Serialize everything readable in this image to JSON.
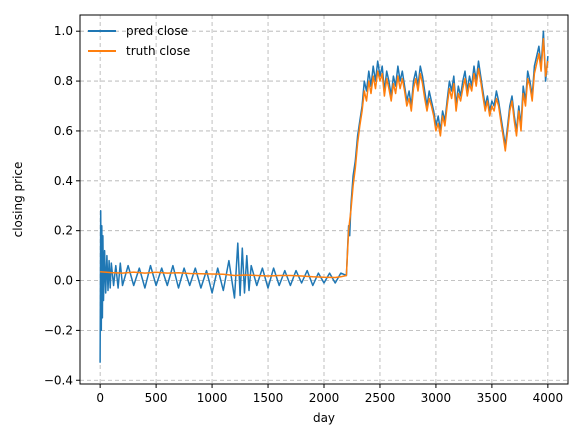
{
  "chart_data": {
    "type": "line",
    "xlabel": "day",
    "ylabel": "closing price",
    "xlim": [
      -180,
      4180
    ],
    "ylim": [
      -0.415,
      1.065
    ],
    "xticks": [
      0,
      500,
      1000,
      1500,
      2000,
      2500,
      3000,
      3500,
      4000
    ],
    "xtick_labels": [
      "0",
      "500",
      "1000",
      "1500",
      "2000",
      "2500",
      "3000",
      "3500",
      "4000"
    ],
    "yticks": [
      -0.4,
      -0.2,
      0.0,
      0.2,
      0.4,
      0.6,
      0.8,
      1.0
    ],
    "ytick_labels": [
      "−0.4",
      "−0.2",
      "0.0",
      "0.2",
      "0.4",
      "0.6",
      "0.8",
      "1.0"
    ],
    "grid": true,
    "legend_position": "top-left",
    "series": [
      {
        "name": "pred close",
        "color": "#1f77b4",
        "x": [
          0,
          5,
          10,
          15,
          20,
          25,
          30,
          40,
          50,
          60,
          70,
          80,
          90,
          100,
          120,
          140,
          160,
          180,
          200,
          250,
          300,
          350,
          400,
          450,
          500,
          550,
          600,
          650,
          700,
          750,
          800,
          850,
          900,
          950,
          1000,
          1050,
          1100,
          1150,
          1200,
          1230,
          1250,
          1270,
          1290,
          1310,
          1330,
          1350,
          1400,
          1450,
          1500,
          1550,
          1600,
          1650,
          1700,
          1750,
          1800,
          1850,
          1900,
          1950,
          2000,
          2050,
          2100,
          2150,
          2200,
          2220,
          2230,
          2240,
          2250,
          2260,
          2280,
          2300,
          2320,
          2340,
          2360,
          2380,
          2400,
          2420,
          2440,
          2460,
          2480,
          2500,
          2520,
          2540,
          2560,
          2580,
          2600,
          2620,
          2640,
          2660,
          2680,
          2700,
          2720,
          2740,
          2760,
          2780,
          2800,
          2820,
          2840,
          2860,
          2880,
          2900,
          2920,
          2940,
          2960,
          2980,
          3000,
          3020,
          3040,
          3060,
          3080,
          3100,
          3120,
          3140,
          3160,
          3180,
          3200,
          3220,
          3240,
          3260,
          3280,
          3300,
          3320,
          3340,
          3360,
          3380,
          3400,
          3420,
          3440,
          3460,
          3480,
          3500,
          3520,
          3540,
          3560,
          3580,
          3600,
          3620,
          3640,
          3660,
          3680,
          3700,
          3720,
          3740,
          3760,
          3780,
          3800,
          3820,
          3840,
          3860,
          3880,
          3900,
          3920,
          3940,
          3960,
          3980,
          4000
        ],
        "y": [
          -0.33,
          0.28,
          -0.2,
          0.22,
          -0.15,
          0.18,
          -0.08,
          0.12,
          -0.05,
          0.1,
          -0.04,
          0.08,
          -0.03,
          0.07,
          -0.02,
          0.06,
          -0.03,
          0.07,
          -0.02,
          0.06,
          -0.02,
          0.05,
          -0.03,
          0.06,
          -0.02,
          0.05,
          -0.02,
          0.06,
          -0.03,
          0.05,
          -0.02,
          0.05,
          -0.03,
          0.04,
          -0.05,
          0.05,
          -0.04,
          0.08,
          -0.07,
          0.15,
          -0.06,
          0.13,
          -0.05,
          0.1,
          -0.04,
          0.06,
          -0.02,
          0.05,
          -0.03,
          0.05,
          -0.02,
          0.04,
          -0.02,
          0.04,
          -0.01,
          0.04,
          -0.02,
          0.03,
          -0.01,
          0.03,
          -0.01,
          0.03,
          0.02,
          0.22,
          0.18,
          0.3,
          0.36,
          0.42,
          0.48,
          0.58,
          0.64,
          0.7,
          0.8,
          0.76,
          0.84,
          0.78,
          0.86,
          0.8,
          0.88,
          0.82,
          0.86,
          0.76,
          0.84,
          0.8,
          0.74,
          0.82,
          0.78,
          0.86,
          0.8,
          0.84,
          0.78,
          0.72,
          0.76,
          0.7,
          0.8,
          0.84,
          0.78,
          0.86,
          0.82,
          0.76,
          0.7,
          0.76,
          0.72,
          0.68,
          0.62,
          0.66,
          0.6,
          0.68,
          0.64,
          0.72,
          0.8,
          0.76,
          0.82,
          0.7,
          0.78,
          0.74,
          0.8,
          0.84,
          0.76,
          0.82,
          0.78,
          0.86,
          0.8,
          0.88,
          0.82,
          0.76,
          0.7,
          0.74,
          0.68,
          0.72,
          0.7,
          0.76,
          0.72,
          0.66,
          0.6,
          0.54,
          0.62,
          0.7,
          0.74,
          0.66,
          0.6,
          0.7,
          0.62,
          0.78,
          0.72,
          0.84,
          0.8,
          0.74,
          0.86,
          0.9,
          0.94,
          0.86,
          1.0,
          0.8,
          0.9
        ]
      },
      {
        "name": "truth close",
        "color": "#ff7f0e",
        "x": [
          0,
          100,
          200,
          300,
          400,
          500,
          600,
          700,
          800,
          900,
          1000,
          1100,
          1200,
          1300,
          1400,
          1500,
          1600,
          1700,
          1800,
          1900,
          2000,
          2100,
          2150,
          2200,
          2220,
          2230,
          2240,
          2250,
          2260,
          2280,
          2300,
          2320,
          2340,
          2360,
          2380,
          2400,
          2420,
          2440,
          2460,
          2480,
          2500,
          2520,
          2540,
          2560,
          2580,
          2600,
          2620,
          2640,
          2660,
          2680,
          2700,
          2720,
          2740,
          2760,
          2780,
          2800,
          2820,
          2840,
          2860,
          2880,
          2900,
          2920,
          2940,
          2960,
          2980,
          3000,
          3020,
          3040,
          3060,
          3080,
          3100,
          3120,
          3140,
          3160,
          3180,
          3200,
          3220,
          3240,
          3260,
          3280,
          3300,
          3320,
          3340,
          3360,
          3380,
          3400,
          3420,
          3440,
          3460,
          3480,
          3500,
          3520,
          3540,
          3560,
          3580,
          3600,
          3620,
          3640,
          3660,
          3680,
          3700,
          3720,
          3740,
          3760,
          3780,
          3800,
          3820,
          3840,
          3860,
          3880,
          3900,
          3920,
          3940,
          3960,
          3980,
          4000
        ],
        "y": [
          0.035,
          0.032,
          0.03,
          0.034,
          0.03,
          0.033,
          0.03,
          0.031,
          0.028,
          0.027,
          0.026,
          0.025,
          0.02,
          0.022,
          0.02,
          0.018,
          0.02,
          0.02,
          0.018,
          0.015,
          0.013,
          0.012,
          0.015,
          0.02,
          0.2,
          0.24,
          0.28,
          0.33,
          0.38,
          0.45,
          0.55,
          0.62,
          0.68,
          0.76,
          0.72,
          0.8,
          0.75,
          0.82,
          0.77,
          0.84,
          0.8,
          0.83,
          0.74,
          0.81,
          0.77,
          0.72,
          0.79,
          0.75,
          0.82,
          0.77,
          0.81,
          0.76,
          0.7,
          0.73,
          0.68,
          0.77,
          0.81,
          0.76,
          0.83,
          0.79,
          0.73,
          0.68,
          0.73,
          0.7,
          0.66,
          0.6,
          0.63,
          0.58,
          0.66,
          0.62,
          0.7,
          0.77,
          0.73,
          0.79,
          0.68,
          0.75,
          0.72,
          0.77,
          0.81,
          0.74,
          0.79,
          0.76,
          0.83,
          0.78,
          0.85,
          0.8,
          0.74,
          0.68,
          0.72,
          0.66,
          0.7,
          0.68,
          0.73,
          0.7,
          0.64,
          0.58,
          0.52,
          0.6,
          0.68,
          0.72,
          0.64,
          0.58,
          0.68,
          0.6,
          0.75,
          0.7,
          0.81,
          0.78,
          0.72,
          0.83,
          0.87,
          0.91,
          0.84,
          0.97,
          0.82,
          0.88
        ]
      }
    ]
  }
}
